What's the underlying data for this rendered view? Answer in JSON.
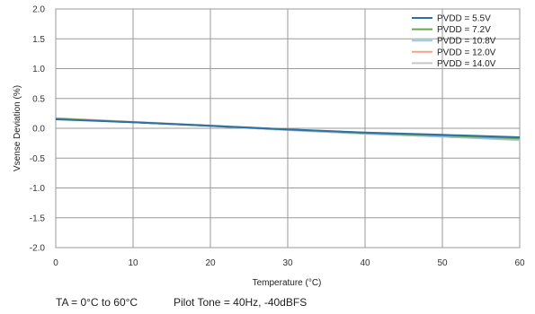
{
  "chart_data": {
    "type": "line",
    "title": "",
    "xlabel": "Temperature (°C)",
    "ylabel": "Vsense Deviation (%)",
    "xlim": [
      0,
      60
    ],
    "ylim": [
      -2.0,
      2.0
    ],
    "x_ticks": [
      "0",
      "10",
      "20",
      "30",
      "40",
      "50",
      "60"
    ],
    "y_ticks": [
      "2.0",
      "1.5",
      "1.0",
      "0.5",
      "0.0",
      "-0.5",
      "-1.0",
      "-1.5",
      "-2.0"
    ],
    "grid": true,
    "legend_position": "top-right",
    "series": [
      {
        "name": "PVDD = 5.5V",
        "color": "#2e6fa6",
        "x": [
          0,
          10,
          20,
          30,
          40,
          50,
          60
        ],
        "y": [
          0.15,
          0.1,
          0.04,
          -0.02,
          -0.07,
          -0.11,
          -0.15
        ]
      },
      {
        "name": "PVDD = 7.2V",
        "color": "#6aa84f",
        "x": [
          0,
          10,
          20,
          30,
          40,
          50,
          60
        ],
        "y": [
          0.16,
          0.1,
          0.04,
          -0.02,
          -0.08,
          -0.12,
          -0.17
        ]
      },
      {
        "name": "PVDD = 10.8V",
        "color": "#9fc5dc",
        "x": [
          0,
          10,
          20,
          30,
          40,
          50,
          60
        ],
        "y": [
          0.16,
          0.1,
          0.04,
          -0.03,
          -0.09,
          -0.14,
          -0.19
        ]
      },
      {
        "name": "PVDD = 12.0V",
        "color": "#f4a582",
        "x": [
          0,
          10,
          20,
          30,
          40,
          50,
          60
        ],
        "y": [
          0.17,
          0.1,
          0.04,
          -0.03,
          -0.09,
          -0.14,
          -0.19
        ]
      },
      {
        "name": "PVDD = 14.0V",
        "color": "#c8c8c8",
        "x": [
          0,
          10,
          20,
          30,
          40,
          50,
          60
        ],
        "y": [
          0.17,
          0.11,
          0.05,
          -0.02,
          -0.09,
          -0.14,
          -0.2
        ]
      }
    ]
  },
  "conditions": {
    "ta": "TA = 0°C to 60°C",
    "tone": "Pilot Tone = 40Hz, -40dBFS"
  }
}
